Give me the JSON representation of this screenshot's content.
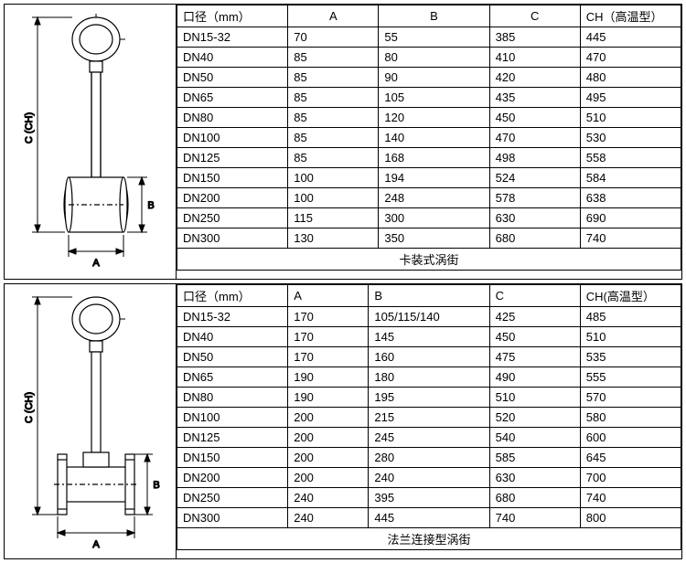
{
  "top": {
    "headers": {
      "diameter": "口径（mm）",
      "A": "A",
      "B": "B",
      "C": "C",
      "CH": "CH（高温型）"
    },
    "rows": [
      {
        "d": "DN15-32",
        "a": "70",
        "b": "55",
        "c": "385",
        "ch": "445"
      },
      {
        "d": "DN40",
        "a": "85",
        "b": "80",
        "c": "410",
        "ch": "470"
      },
      {
        "d": "DN50",
        "a": "85",
        "b": "90",
        "c": "420",
        "ch": "480"
      },
      {
        "d": "DN65",
        "a": "85",
        "b": "105",
        "c": "435",
        "ch": "495"
      },
      {
        "d": "DN80",
        "a": "85",
        "b": "120",
        "c": "450",
        "ch": "510"
      },
      {
        "d": "DN100",
        "a": "85",
        "b": "140",
        "c": "470",
        "ch": "530"
      },
      {
        "d": "DN125",
        "a": "85",
        "b": "168",
        "c": "498",
        "ch": "558"
      },
      {
        "d": "DN150",
        "a": "100",
        "b": "194",
        "c": "524",
        "ch": "584"
      },
      {
        "d": "DN200",
        "a": "100",
        "b": "248",
        "c": "578",
        "ch": "638"
      },
      {
        "d": "DN250",
        "a": "115",
        "b": "300",
        "c": "630",
        "ch": "690"
      },
      {
        "d": "DN300",
        "a": "130",
        "b": "350",
        "c": "680",
        "ch": "740"
      }
    ],
    "caption": "卡装式涡街",
    "diagram": {
      "label_A": "A",
      "label_B": "B",
      "label_C": "C (CH)",
      "stroke": "#000000",
      "fill": "#ffffff"
    }
  },
  "bottom": {
    "headers": {
      "diameter": "口径（mm）",
      "A": "A",
      "B": "B",
      "C": "C",
      "CH": "CH(高温型）"
    },
    "rows": [
      {
        "d": "DN15-32",
        "a": "170",
        "b": "105/115/140",
        "c": "425",
        "ch": "485"
      },
      {
        "d": "DN40",
        "a": "170",
        "b": "145",
        "c": "450",
        "ch": "510"
      },
      {
        "d": "DN50",
        "a": "170",
        "b": "160",
        "c": "475",
        "ch": "535"
      },
      {
        "d": "DN65",
        "a": "190",
        "b": "180",
        "c": "490",
        "ch": "555"
      },
      {
        "d": "DN80",
        "a": "190",
        "b": "195",
        "c": "510",
        "ch": "570"
      },
      {
        "d": "DN100",
        "a": "200",
        "b": "215",
        "c": "520",
        "ch": "580"
      },
      {
        "d": "DN125",
        "a": "200",
        "b": "245",
        "c": "540",
        "ch": "600"
      },
      {
        "d": "DN150",
        "a": "200",
        "b": "280",
        "c": "585",
        "ch": "645"
      },
      {
        "d": "DN200",
        "a": "200",
        "b": "240",
        "c": "630",
        "ch": "700"
      },
      {
        "d": "DN250",
        "a": "240",
        "b": "395",
        "c": "680",
        "ch": "740"
      },
      {
        "d": "DN300",
        "a": "240",
        "b": "445",
        "c": "740",
        "ch": "800"
      }
    ],
    "caption": "法兰连接型涡街",
    "diagram": {
      "label_A": "A",
      "label_B": "B",
      "label_C": "C (CH)",
      "stroke": "#000000",
      "fill": "#ffffff"
    }
  },
  "col_widths": {
    "d": "22%",
    "a": "18%",
    "b": "22%",
    "c": "18%",
    "ch": "20%"
  }
}
